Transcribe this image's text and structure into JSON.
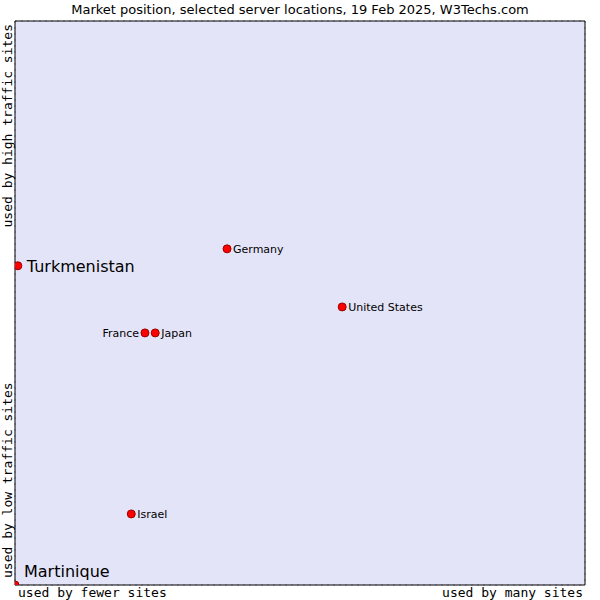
{
  "chart_data": {
    "type": "scatter",
    "title": "Market position, selected server locations, 19 Feb 2025, W3Techs.com",
    "xlabels": [
      "used by fewer sites",
      "used by many sites"
    ],
    "ylabels": [
      "used by low traffic sites",
      "used by high traffic sites"
    ],
    "labels": [
      "Turkmenistan",
      "Germany",
      "United States",
      "France",
      "Japan",
      "Israel",
      "Martinique"
    ],
    "x": [
      0.5,
      37.2,
      57.4,
      22.8,
      24.6,
      20.4,
      0
    ],
    "y": [
      56.6,
      59.6,
      49.3,
      44.7,
      44.7,
      12.6,
      0
    ],
    "highlight": [
      true,
      false,
      false,
      false,
      false,
      false,
      true
    ],
    "color": "#ff0000",
    "xlim": [
      0,
      100
    ],
    "ylim": [
      0,
      100
    ],
    "xticks": [
      0,
      10,
      20,
      30,
      40,
      50,
      60,
      70,
      80,
      90,
      100
    ],
    "yticks": [
      0,
      10,
      20,
      30,
      40,
      50,
      60,
      70,
      80,
      90,
      100
    ],
    "grid": true,
    "tick_labels": false,
    "marker": "circle"
  }
}
